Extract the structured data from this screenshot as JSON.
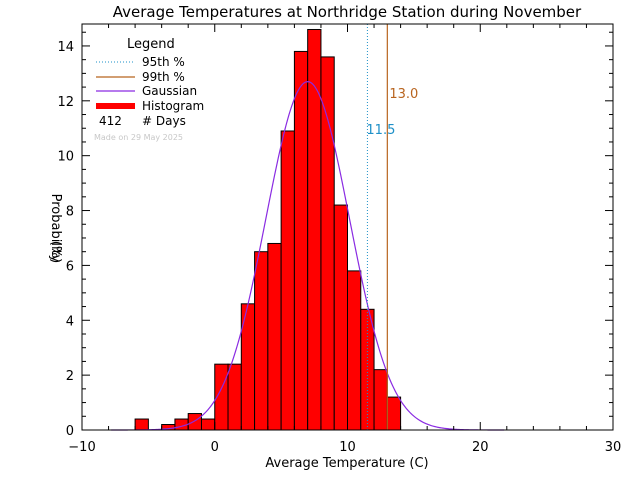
{
  "chart_data": {
    "type": "bar",
    "title": "Average Temperatures at Northridge Station during November",
    "xlabel": "Average Temperature (C)",
    "ylabel": "Probability",
    "ylabel_unit": "(%)",
    "xlim": [
      -10,
      30
    ],
    "ylim": [
      0,
      14.8
    ],
    "x_ticks": [
      -10,
      0,
      10,
      20,
      30
    ],
    "y_ticks": [
      0,
      2,
      4,
      6,
      8,
      10,
      12,
      14
    ],
    "bin_width": 1,
    "bins": [
      {
        "x0": -6,
        "x1": -5,
        "value": 0.4
      },
      {
        "x0": -5,
        "x1": -4,
        "value": 0.0
      },
      {
        "x0": -4,
        "x1": -3,
        "value": 0.2
      },
      {
        "x0": -3,
        "x1": -2,
        "value": 0.4
      },
      {
        "x0": -2,
        "x1": -1,
        "value": 0.6
      },
      {
        "x0": -1,
        "x1": 0,
        "value": 0.4
      },
      {
        "x0": 0,
        "x1": 1,
        "value": 2.4
      },
      {
        "x0": 1,
        "x1": 2,
        "value": 2.4
      },
      {
        "x0": 2,
        "x1": 3,
        "value": 4.6
      },
      {
        "x0": 3,
        "x1": 4,
        "value": 6.5
      },
      {
        "x0": 4,
        "x1": 5,
        "value": 6.8
      },
      {
        "x0": 5,
        "x1": 6,
        "value": 10.9
      },
      {
        "x0": 6,
        "x1": 7,
        "value": 13.8
      },
      {
        "x0": 7,
        "x1": 8,
        "value": 14.6
      },
      {
        "x0": 8,
        "x1": 9,
        "value": 13.6
      },
      {
        "x0": 9,
        "x1": 10,
        "value": 8.2
      },
      {
        "x0": 10,
        "x1": 11,
        "value": 5.8
      },
      {
        "x0": 11,
        "x1": 12,
        "value": 4.4
      },
      {
        "x0": 12,
        "x1": 13,
        "value": 2.2
      },
      {
        "x0": 13,
        "x1": 14,
        "value": 1.2
      }
    ],
    "gaussian": {
      "mean": 7.0,
      "sigma": 3.15,
      "peak": 12.7
    },
    "percentile_95": {
      "value": 11.5,
      "label": "11.5",
      "color": "#1e90c8"
    },
    "percentile_99": {
      "value": 13.0,
      "label": "13.0",
      "color": "#b8641e"
    },
    "legend": {
      "title": "Legend",
      "placement": "top-left",
      "entries": [
        {
          "label": "95th %",
          "style": "dotted",
          "color": "#1e90c8"
        },
        {
          "label": "99th %",
          "style": "solid",
          "color": "#b8641e"
        },
        {
          "label": "Gaussian",
          "style": "solid",
          "color": "#8a2be2"
        },
        {
          "label": "Histogram",
          "style": "thick",
          "color": "#ff0000"
        }
      ],
      "days_count": "412",
      "days_label": "# Days",
      "made_on": "Made on 29 May 2025"
    },
    "colors": {
      "bar_fill": "#ff0000",
      "bar_edge": "#000000",
      "gaussian": "#8a2be2",
      "axis": "#000000"
    }
  }
}
